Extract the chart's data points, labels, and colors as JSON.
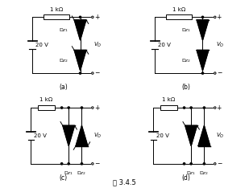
{
  "title": "图 3.4.5",
  "background": "#ffffff",
  "line_color": "#000000",
  "text_color": "#000000",
  "panels": [
    "(a)",
    "(b)",
    "(c)",
    "(d)"
  ]
}
